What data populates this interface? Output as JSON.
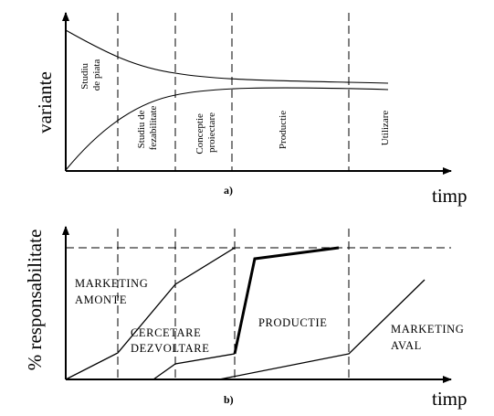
{
  "diagram_a": {
    "y_label": "variante",
    "x_label": "timp",
    "caption": "a)",
    "phases": [
      [
        "Studiu",
        "de piata"
      ],
      [
        "Studiu de",
        "fezabilitate"
      ],
      [
        "Conceptie",
        "proiectare"
      ],
      [
        "Productie"
      ],
      [
        "Utilizare"
      ]
    ]
  },
  "diagram_b": {
    "y_label": "% responsabilitate",
    "x_label": "timp",
    "caption": "b)",
    "areas": [
      [
        "MARKETING",
        "AMONTE"
      ],
      [
        "CERCETARE",
        "DEZVOLTARE"
      ],
      [
        "PRODUCTIE"
      ],
      [
        "MARKETING",
        "AVAL"
      ]
    ]
  }
}
